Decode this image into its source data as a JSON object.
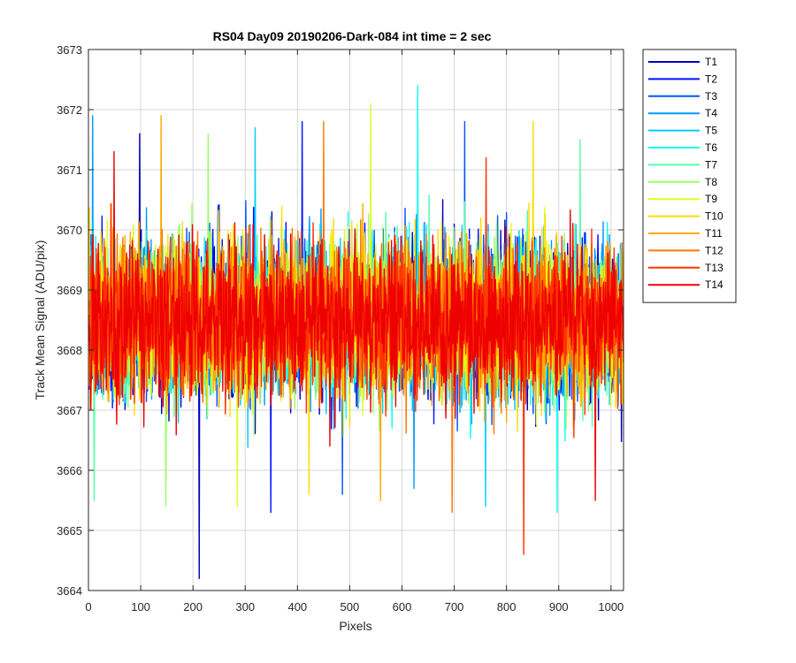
{
  "chart_data": {
    "type": "line",
    "title": "RS04 Day09 20190206-Dark-084 int time = 2 sec",
    "xlabel": "Pixels",
    "ylabel": "Track Mean Signal (ADU/pix)",
    "xlim": [
      0,
      1024
    ],
    "ylim": [
      3664,
      3673
    ],
    "xticks": [
      0,
      100,
      200,
      300,
      400,
      500,
      600,
      700,
      800,
      900,
      1000
    ],
    "yticks": [
      3664,
      3665,
      3666,
      3667,
      3668,
      3669,
      3670,
      3671,
      3672,
      3673
    ],
    "grid": true,
    "legend_position": "outside-top-right",
    "x_range_of_series": [
      1,
      1024
    ],
    "series": [
      {
        "name": "T1",
        "color": "#0000bf",
        "mean": 3668.5,
        "min": 3664.2,
        "max": 3671.6
      },
      {
        "name": "T2",
        "color": "#0011ff",
        "mean": 3668.5,
        "min": 3665.3,
        "max": 3671.8
      },
      {
        "name": "T3",
        "color": "#0055ff",
        "mean": 3668.5,
        "min": 3665.6,
        "max": 3671.8
      },
      {
        "name": "T4",
        "color": "#0099ff",
        "mean": 3668.5,
        "min": 3665.7,
        "max": 3671.9
      },
      {
        "name": "T5",
        "color": "#00ccff",
        "mean": 3668.5,
        "min": 3665.4,
        "max": 3671.7
      },
      {
        "name": "T6",
        "color": "#11ffee",
        "mean": 3668.5,
        "min": 3665.3,
        "max": 3672.4
      },
      {
        "name": "T7",
        "color": "#55ffaa",
        "mean": 3668.5,
        "min": 3665.5,
        "max": 3671.5
      },
      {
        "name": "T8",
        "color": "#99ff66",
        "mean": 3668.5,
        "min": 3665.4,
        "max": 3671.6
      },
      {
        "name": "T9",
        "color": "#ddff22",
        "mean": 3668.5,
        "min": 3665.4,
        "max": 3672.1
      },
      {
        "name": "T10",
        "color": "#ffdd00",
        "mean": 3668.5,
        "min": 3665.6,
        "max": 3671.8
      },
      {
        "name": "T11",
        "color": "#ffaa00",
        "mean": 3668.5,
        "min": 3665.5,
        "max": 3671.9
      },
      {
        "name": "T12",
        "color": "#ff7700",
        "mean": 3668.5,
        "min": 3665.3,
        "max": 3671.8
      },
      {
        "name": "T13",
        "color": "#ff3300",
        "mean": 3668.5,
        "min": 3664.6,
        "max": 3671.2
      },
      {
        "name": "T14",
        "color": "#ee0000",
        "mean": 3668.5,
        "min": 3665.5,
        "max": 3671.3
      }
    ]
  }
}
